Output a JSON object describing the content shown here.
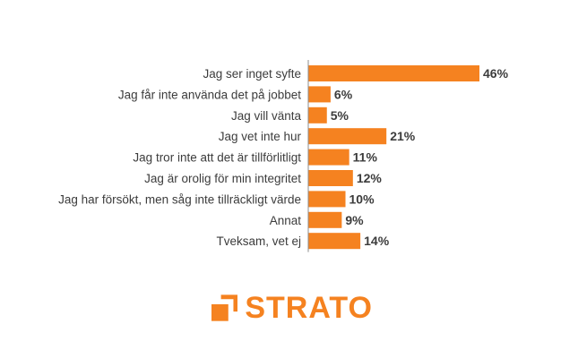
{
  "chart_data": {
    "type": "bar",
    "orientation": "horizontal",
    "categories": [
      "Jag ser inget syfte",
      "Jag får inte använda det på jobbet",
      "Jag vill vänta",
      "Jag vet inte hur",
      "Jag tror inte att det är tillförlitligt",
      "Jag är orolig för min integritet",
      "Jag har försökt, men såg inte tillräckligt värde",
      "Annat",
      "Tveksam, vet ej"
    ],
    "values": [
      46,
      6,
      5,
      21,
      11,
      12,
      10,
      9,
      14
    ],
    "value_labels": [
      "46%",
      "6%",
      "5%",
      "21%",
      "11%",
      "12%",
      "10%",
      "9%",
      "14%"
    ],
    "xlim": [
      0,
      46
    ],
    "grid": false,
    "bar_color": "#f58220",
    "axis_color": "#8c8c8c",
    "label_color": "#3c3c3c"
  },
  "logo": {
    "text": "STRATO",
    "color": "#f58220",
    "icon": "strato-bracket-icon"
  }
}
